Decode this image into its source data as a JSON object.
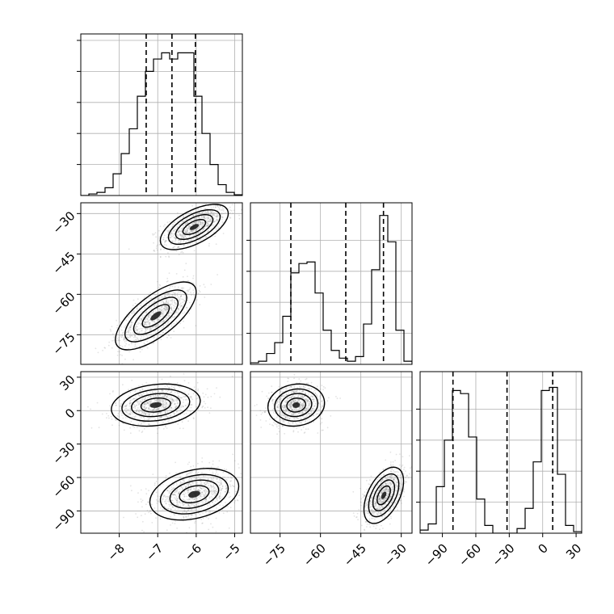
{
  "chart_data": {
    "type": "corner",
    "colors": {
      "line": "#000000",
      "grid": "#b0b0b0",
      "samples": "#7f7f7f",
      "fill_levels": [
        "#f2f2f2",
        "#cfcfcf",
        "#9a9a9a",
        "#5c5c5c",
        "#101010"
      ]
    },
    "grid": true,
    "parameters": [
      {
        "range": [
          -9.0,
          -4.8
        ],
        "ticks": [
          -8,
          -7,
          -6,
          -5
        ],
        "tick_labels": [
          "−8",
          "−7",
          "−6",
          "−5"
        ],
        "quantiles": [
          -7.3,
          -6.63,
          -6.02
        ],
        "hist_y_ticks": [
          0.2,
          0.4,
          0.6,
          0.8,
          1.0
        ],
        "histogram": [
          0.0,
          0.01,
          0.02,
          0.05,
          0.14,
          0.27,
          0.43,
          0.64,
          0.8,
          0.88,
          0.92,
          0.88,
          0.92,
          0.92,
          0.64,
          0.4,
          0.2,
          0.07,
          0.02,
          0.005
        ]
      },
      {
        "range": [
          -86.0,
          -26.0
        ],
        "ticks": [
          -30,
          -45,
          -60,
          -75
        ],
        "tick_labels": [
          "−30",
          "−45",
          "−60",
          "−75"
        ],
        "bottom_ticks": [
          -75,
          -60,
          -45,
          -30
        ],
        "quantiles": [
          -71.0,
          -50.6,
          -36.6
        ],
        "histogram": [
          0.01,
          0.02,
          0.07,
          0.14,
          0.31,
          0.59,
          0.65,
          0.66,
          0.46,
          0.22,
          0.09,
          0.04,
          0.02,
          0.05,
          0.26,
          0.61,
          0.96,
          0.79,
          0.22,
          0.02
        ]
      },
      {
        "range": [
          -110.0,
          35.0
        ],
        "ticks": [
          30,
          0,
          -30,
          -60,
          -90
        ],
        "tick_labels": [
          "30",
          "0",
          "−30",
          "−60",
          "−90"
        ],
        "bottom_ticks": [
          -90,
          -60,
          -30,
          0,
          30
        ],
        "quantiles": [
          -80.5,
          -32.0,
          9.0
        ],
        "histogram": [
          0.02,
          0.06,
          0.3,
          0.6,
          0.92,
          0.9,
          0.62,
          0.22,
          0.05,
          0.0,
          0.0,
          0.0,
          0.03,
          0.16,
          0.46,
          0.92,
          0.94,
          0.38,
          0.05,
          0.01
        ]
      }
    ],
    "pairs": [
      {
        "x_param": 0,
        "y_param": 1,
        "modes": [
          {
            "cx": -6.05,
            "cy": -35.0,
            "sx": 0.42,
            "sy": 4.0,
            "rho": 0.6,
            "weight": 0.5
          },
          {
            "cx": -7.05,
            "cy": -68.0,
            "sx": 0.5,
            "sy": 6.0,
            "rho": 0.7,
            "weight": 0.5
          }
        ]
      },
      {
        "x_param": 0,
        "y_param": 2,
        "modes": [
          {
            "cx": -7.05,
            "cy": 5.0,
            "sx": 0.55,
            "sy": 9.0,
            "rho": 0.2,
            "weight": 0.5
          },
          {
            "cx": -6.05,
            "cy": -75.0,
            "sx": 0.55,
            "sy": 11.0,
            "rho": 0.3,
            "weight": 0.5
          }
        ]
      },
      {
        "x_param": 1,
        "y_param": 2,
        "modes": [
          {
            "cx": -69.0,
            "cy": 5.0,
            "sx": 5.0,
            "sy": 9.0,
            "rho": 0.1,
            "weight": 0.5
          },
          {
            "cx": -36.5,
            "cy": -76.0,
            "sx": 3.5,
            "sy": 12.0,
            "rho": 0.5,
            "weight": 0.5
          }
        ]
      }
    ]
  }
}
